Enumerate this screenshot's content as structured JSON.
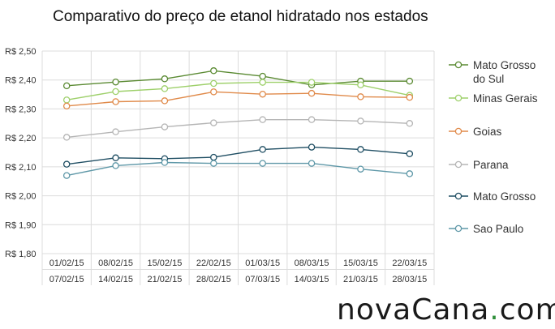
{
  "chart_data": {
    "type": "line",
    "title": "Comparativo do preço de etanol hidratado nos estados",
    "xlabel": "",
    "ylabel": "",
    "categories": [
      [
        "01/02/15",
        "07/02/15"
      ],
      [
        "08/02/15",
        "14/02/15"
      ],
      [
        "15/02/15",
        "21/02/15"
      ],
      [
        "22/02/15",
        "28/02/15"
      ],
      [
        "01/03/15",
        "07/03/15"
      ],
      [
        "08/03/15",
        "14/03/15"
      ],
      [
        "15/03/15",
        "21/03/15"
      ],
      [
        "22/03/15",
        "28/03/15"
      ]
    ],
    "ylim": [
      1.8,
      2.5
    ],
    "yticks": [
      1.8,
      1.9,
      2.0,
      2.1,
      2.2,
      2.3,
      2.4,
      2.5
    ],
    "ytick_labels": [
      "R$ 1,80",
      "R$ 1,90",
      "R$ 2,00",
      "R$ 2,10",
      "R$ 2,20",
      "R$ 2,30",
      "R$ 2,40",
      "R$ 2,50"
    ],
    "grid": true,
    "legend_position": "right",
    "series": [
      {
        "name": "Mato Grosso do Sul",
        "color": "#5a8a32",
        "values": [
          2.38,
          2.393,
          2.404,
          2.432,
          2.413,
          2.383,
          2.396,
          2.396
        ]
      },
      {
        "name": "Minas Gerais",
        "color": "#9ed06b",
        "values": [
          2.331,
          2.36,
          2.37,
          2.388,
          2.392,
          2.392,
          2.383,
          2.347
        ]
      },
      {
        "name": "Goias",
        "color": "#e08a4a",
        "values": [
          2.31,
          2.325,
          2.328,
          2.359,
          2.351,
          2.354,
          2.342,
          2.34
        ]
      },
      {
        "name": "Parana",
        "color": "#b5b5b5",
        "values": [
          2.202,
          2.221,
          2.238,
          2.252,
          2.263,
          2.263,
          2.258,
          2.25
        ]
      },
      {
        "name": "Mato Grosso",
        "color": "#1f4e63",
        "values": [
          2.109,
          2.131,
          2.128,
          2.133,
          2.16,
          2.168,
          2.16,
          2.145
        ]
      },
      {
        "name": "Sao Paulo",
        "color": "#5f98a8",
        "values": [
          2.07,
          2.104,
          2.115,
          2.112,
          2.112,
          2.112,
          2.092,
          2.076
        ]
      }
    ]
  },
  "brand": {
    "prefix": "nova",
    "suffix": "Cana",
    "dot": ".",
    "tld": "com"
  }
}
